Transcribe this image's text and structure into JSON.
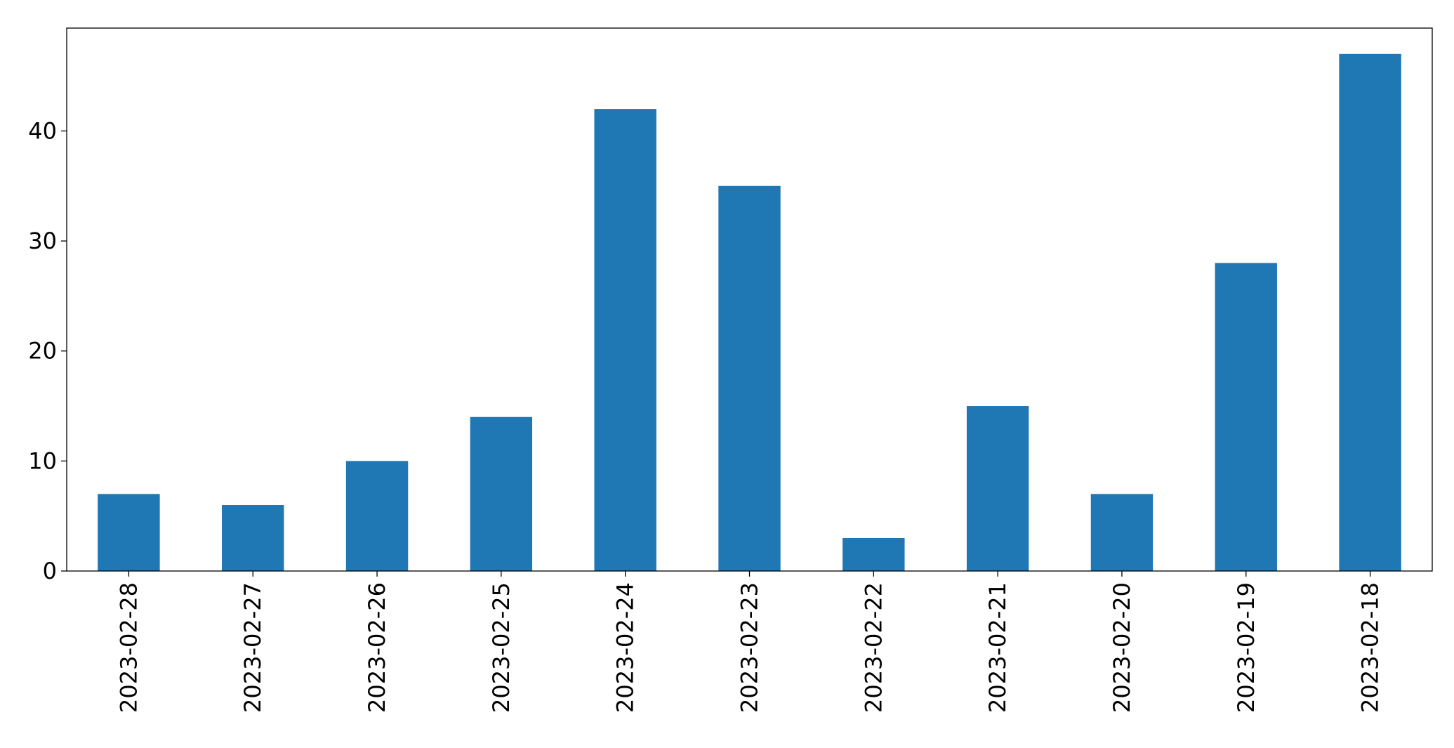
{
  "chart_data": {
    "type": "bar",
    "title": "",
    "xlabel": "",
    "ylabel": "",
    "categories": [
      "2023-02-28",
      "2023-02-27",
      "2023-02-26",
      "2023-02-25",
      "2023-02-24",
      "2023-02-23",
      "2023-02-22",
      "2023-02-21",
      "2023-02-20",
      "2023-02-19",
      "2023-02-18"
    ],
    "values": [
      7,
      6,
      10,
      14,
      42,
      35,
      3,
      15,
      7,
      28,
      47
    ],
    "ylim": [
      0,
      49.35
    ],
    "yticks": [
      0,
      10,
      20,
      30,
      40
    ],
    "grid": false,
    "legend": "none",
    "bar_color": "#1f77b4"
  }
}
